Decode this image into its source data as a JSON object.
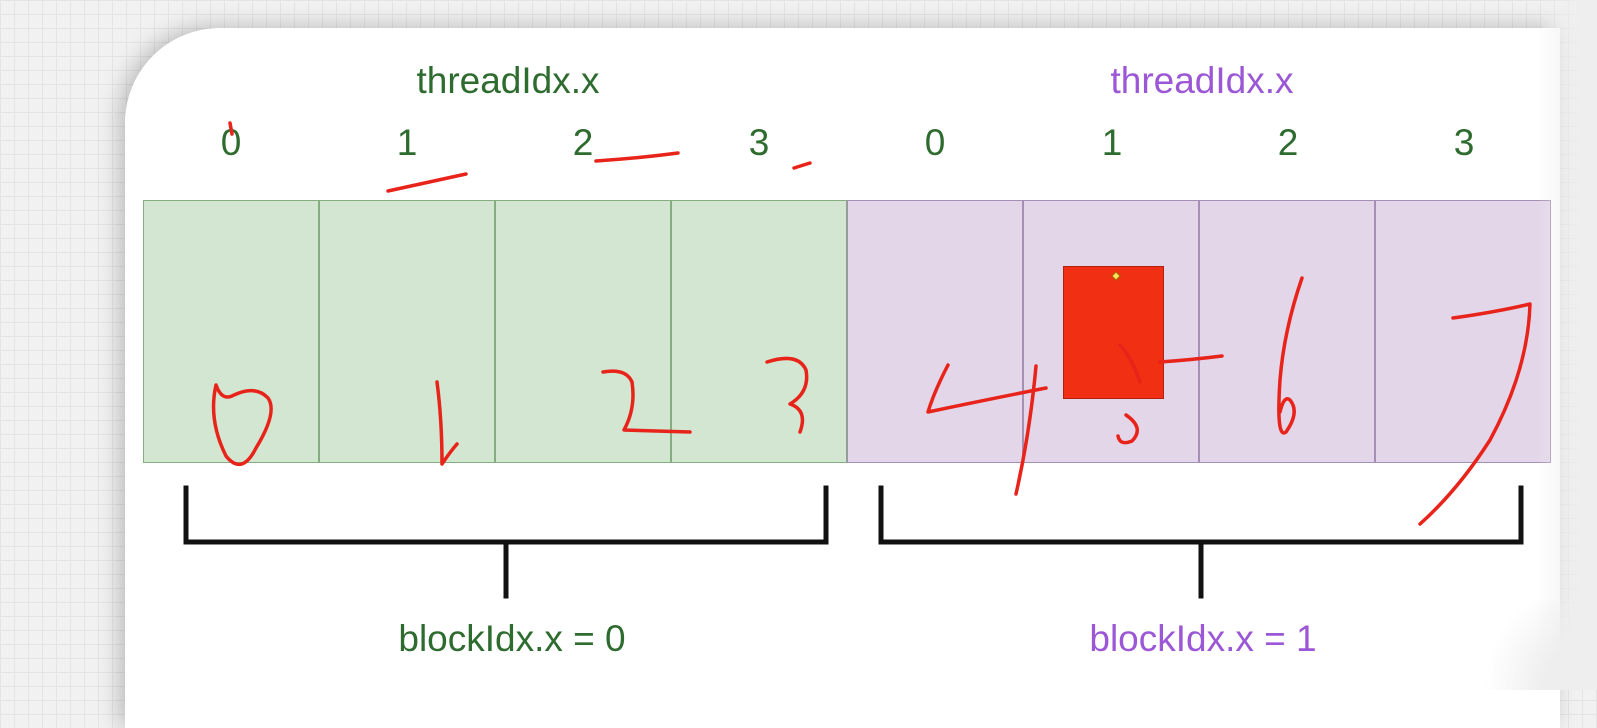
{
  "blocks": [
    {
      "thread_label": "threadIdx.x",
      "thread_indices": [
        "0",
        "1",
        "2",
        "3"
      ],
      "block_label": "blockIdx.x = 0",
      "color": "#2e6b2e",
      "fill": "#d3e6d1"
    },
    {
      "thread_label": "threadIdx.x",
      "thread_indices": [
        "0",
        "1",
        "2",
        "3"
      ],
      "block_label": "blockIdx.x = 1",
      "color": "#9b57d6",
      "fill": "#e3d6e9"
    }
  ],
  "handwritten_global_indices": [
    "0",
    "1",
    "2",
    "3",
    "4",
    "5",
    "6",
    "7"
  ],
  "annotation_color": "#e8231a"
}
